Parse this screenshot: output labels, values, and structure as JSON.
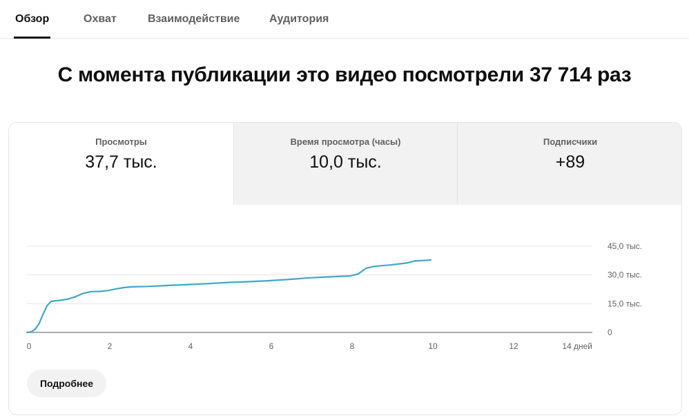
{
  "tabs": [
    {
      "label": "Обзор",
      "active": true
    },
    {
      "label": "Охват",
      "active": false
    },
    {
      "label": "Взаимодействие",
      "active": false
    },
    {
      "label": "Аудитория",
      "active": false
    }
  ],
  "headline": "С момента публикации это видео посмотрели 37 714 раз",
  "metrics": [
    {
      "label": "Просмотры",
      "value": "37,7 тыс.",
      "selected": true
    },
    {
      "label": "Время просмотра (часы)",
      "value": "10,0 тыс.",
      "selected": false
    },
    {
      "label": "Подписчики",
      "value": "+89",
      "selected": false
    }
  ],
  "chart_data": {
    "type": "line",
    "x_ticks": [
      "0",
      "2",
      "4",
      "6",
      "8",
      "10",
      "12",
      "14 дней"
    ],
    "y_ticks": [
      "0",
      "15,0 тыс.",
      "30,0 тыс.",
      "45,0 тыс."
    ],
    "xlim": [
      0,
      14
    ],
    "ylim": [
      0,
      45000
    ],
    "grid": true,
    "color": "#3ea6c9",
    "series": [
      {
        "x": [
          0,
          0.1,
          0.2,
          0.3,
          0.4,
          0.5,
          0.6,
          0.7,
          0.8,
          1.0,
          1.2,
          1.4,
          1.6,
          1.8,
          2.0,
          2.2,
          2.4,
          2.6,
          3.0,
          3.5,
          4.0,
          4.5,
          5.0,
          5.5,
          6.0,
          6.5,
          7.0,
          7.5,
          8.0,
          8.2,
          8.4,
          8.6,
          9.0,
          9.4,
          9.6,
          9.8,
          10.0
        ],
        "y": [
          0,
          300,
          1500,
          4500,
          9500,
          14000,
          16200,
          16500,
          16700,
          17300,
          18600,
          20400,
          21300,
          21400,
          21800,
          22700,
          23400,
          23800,
          24000,
          24500,
          25000,
          25500,
          26100,
          26500,
          27000,
          27700,
          28500,
          29000,
          29500,
          30500,
          33500,
          34500,
          35200,
          36200,
          37300,
          37500,
          37800
        ]
      }
    ]
  },
  "more_button": "Подробнее"
}
